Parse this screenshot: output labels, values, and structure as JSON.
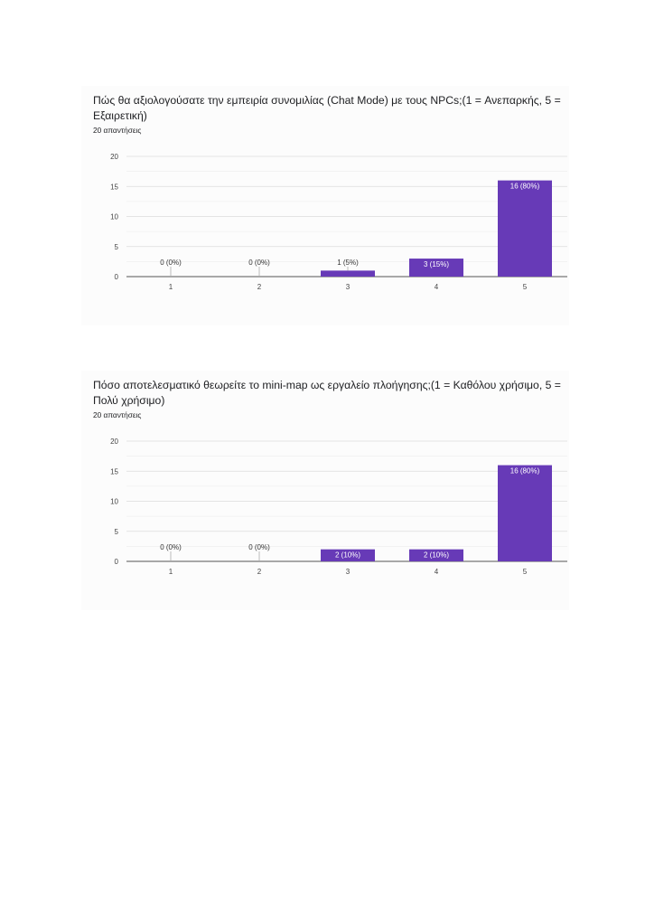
{
  "charts": [
    {
      "title": "Πώς θα αξιολογούσατε την εμπειρία συνομιλίας (Chat Mode) με τους NPCs;(1 = Ανεπαρκής, 5 = Εξαιρετική)",
      "responses": "20 απαντήσεις"
    },
    {
      "title": "Πόσο αποτελεσματικό θεωρείτε το mini-map ως εργαλείο πλοήγησης;(1 = Καθόλου χρήσιμο, 5 = Πολύ χρήσιμο)",
      "responses": "20 απαντήσεις"
    }
  ],
  "chart_data": [
    {
      "type": "bar",
      "title": "Πώς θα αξιολογούσατε την εμπειρία συνομιλίας (Chat Mode) με τους NPCs;(1 = Ανεπαρκής, 5 = Εξαιρετική)",
      "categories": [
        "1",
        "2",
        "3",
        "4",
        "5"
      ],
      "values": [
        0,
        0,
        1,
        3,
        16
      ],
      "data_labels": [
        "0 (0%)",
        "0 (0%)",
        "1 (5%)",
        "3 (15%)",
        "16 (80%)"
      ],
      "yticks": [
        "0",
        "5",
        "10",
        "15",
        "20"
      ],
      "ylim": [
        0,
        20
      ],
      "grid": true,
      "bar_color": "#673ab7"
    },
    {
      "type": "bar",
      "title": "Πόσο αποτελεσματικό θεωρείτε το mini-map ως εργαλείο πλοήγησης;(1 = Καθόλου χρήσιμο, 5 = Πολύ χρήσιμο)",
      "categories": [
        "1",
        "2",
        "3",
        "4",
        "5"
      ],
      "values": [
        0,
        0,
        2,
        2,
        16
      ],
      "data_labels": [
        "0 (0%)",
        "0 (0%)",
        "2 (10%)",
        "2 (10%)",
        "16 (80%)"
      ],
      "yticks": [
        "0",
        "5",
        "10",
        "15",
        "20"
      ],
      "ylim": [
        0,
        20
      ],
      "grid": true,
      "bar_color": "#673ab7"
    }
  ]
}
